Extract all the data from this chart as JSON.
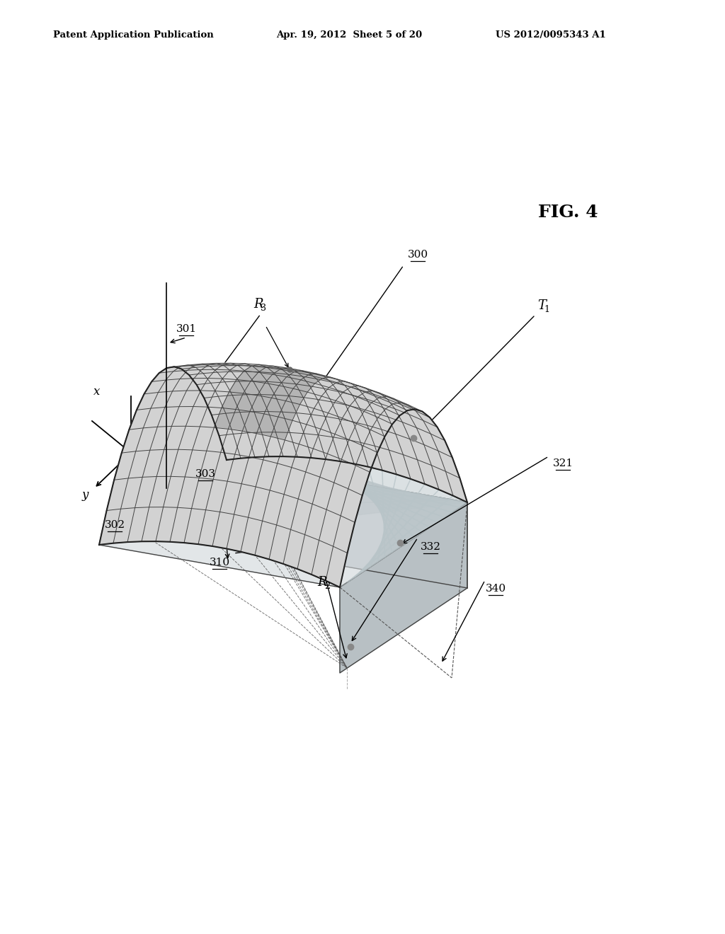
{
  "title": "FIG. 4",
  "header_left": "Patent Application Publication",
  "header_center": "Apr. 19, 2012  Sheet 5 of 20",
  "header_right": "US 2012/0095343 A1",
  "bg_color": "#ffffff",
  "grid_color": "#444444",
  "surface_fill": "#d8d8d8",
  "highlight_fill": "#a8a8a8",
  "box_front_fill": "#c8ced2",
  "box_side_fill": "#b8c0c4",
  "box_top_fill": "#d0d6d9"
}
